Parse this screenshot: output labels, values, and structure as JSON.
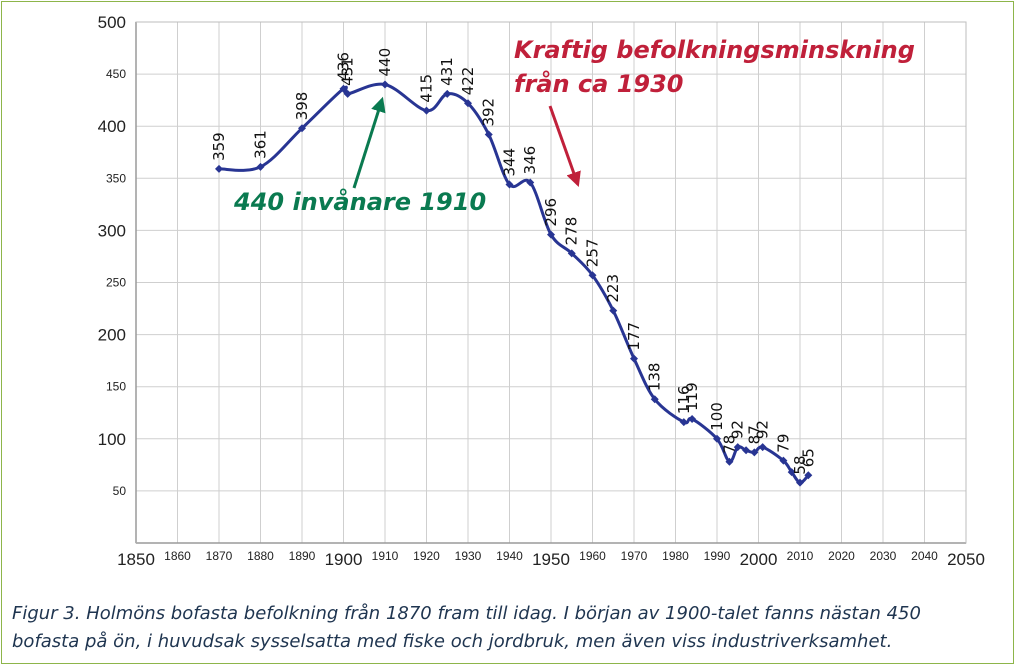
{
  "chart_data": {
    "type": "line",
    "color": "#283593",
    "xlim": [
      1850,
      2050
    ],
    "ylim": [
      0,
      500
    ],
    "x_ticks": [
      1850,
      1860,
      1870,
      1880,
      1890,
      1900,
      1910,
      1920,
      1930,
      1940,
      1950,
      1960,
      1970,
      1980,
      1990,
      2000,
      2010,
      2020,
      2030,
      2040,
      2050
    ],
    "x_ticks_major": [
      1850,
      1900,
      1950,
      2000,
      2050
    ],
    "y_ticks": [
      50,
      100,
      150,
      200,
      250,
      300,
      350,
      400,
      450,
      500
    ],
    "y_ticks_major": [
      100,
      200,
      300,
      400,
      500
    ],
    "grid": true,
    "series": [
      {
        "points": [
          {
            "x": 1870,
            "y": 359,
            "label": "359"
          },
          {
            "x": 1880,
            "y": 361,
            "label": "361"
          },
          {
            "x": 1890,
            "y": 398,
            "label": "398"
          },
          {
            "x": 1900,
            "y": 436,
            "label": "436"
          },
          {
            "x": 1901,
            "y": 431,
            "label": "431"
          },
          {
            "x": 1910,
            "y": 440,
            "label": "440"
          },
          {
            "x": 1920,
            "y": 415,
            "label": "415"
          },
          {
            "x": 1925,
            "y": 431,
            "label": "431"
          },
          {
            "x": 1930,
            "y": 422,
            "label": "422"
          },
          {
            "x": 1935,
            "y": 392,
            "label": "392"
          },
          {
            "x": 1940,
            "y": 344,
            "label": "344"
          },
          {
            "x": 1945,
            "y": 346,
            "label": "346"
          },
          {
            "x": 1950,
            "y": 296,
            "label": "296"
          },
          {
            "x": 1955,
            "y": 278,
            "label": "278"
          },
          {
            "x": 1960,
            "y": 257,
            "label": "257"
          },
          {
            "x": 1965,
            "y": 223,
            "label": "223"
          },
          {
            "x": 1970,
            "y": 177,
            "label": "177"
          },
          {
            "x": 1975,
            "y": 138,
            "label": "138"
          },
          {
            "x": 1982,
            "y": 116,
            "label": "116"
          },
          {
            "x": 1984,
            "y": 119,
            "label": "119"
          },
          {
            "x": 1990,
            "y": 100,
            "label": "100"
          },
          {
            "x": 1993,
            "y": 78,
            "label": "78"
          },
          {
            "x": 1995,
            "y": 92,
            "label": "92"
          },
          {
            "x": 1997,
            "y": 89,
            "label": ""
          },
          {
            "x": 1999,
            "y": 87,
            "label": "87"
          },
          {
            "x": 2001,
            "y": 92,
            "label": "92"
          },
          {
            "x": 2006,
            "y": 79,
            "label": "79"
          },
          {
            "x": 2008,
            "y": 68,
            "label": ""
          },
          {
            "x": 2010,
            "y": 58,
            "label": "58"
          },
          {
            "x": 2012,
            "y": 65,
            "label": "65"
          }
        ]
      }
    ],
    "annotations": [
      {
        "text_line1": "Kraftig befolkningsminskning",
        "text_line2": "från ca 1930",
        "color": "#c0203a",
        "arrow_to": {
          "x": 1955,
          "y": 352
        }
      },
      {
        "text": "440 invånare 1910",
        "color": "#0a7a50",
        "arrow_to": {
          "x": 1910,
          "y": 437
        }
      }
    ]
  },
  "caption": {
    "line1": "Figur 3. Holmöns bofasta befolkning från 1870 fram till idag. I början av 1900-talet fanns nästan 450",
    "line2": "bofasta på ön, i huvudsak sysselsatta med fiske och jordbruk, men även viss industriverksamhet."
  }
}
